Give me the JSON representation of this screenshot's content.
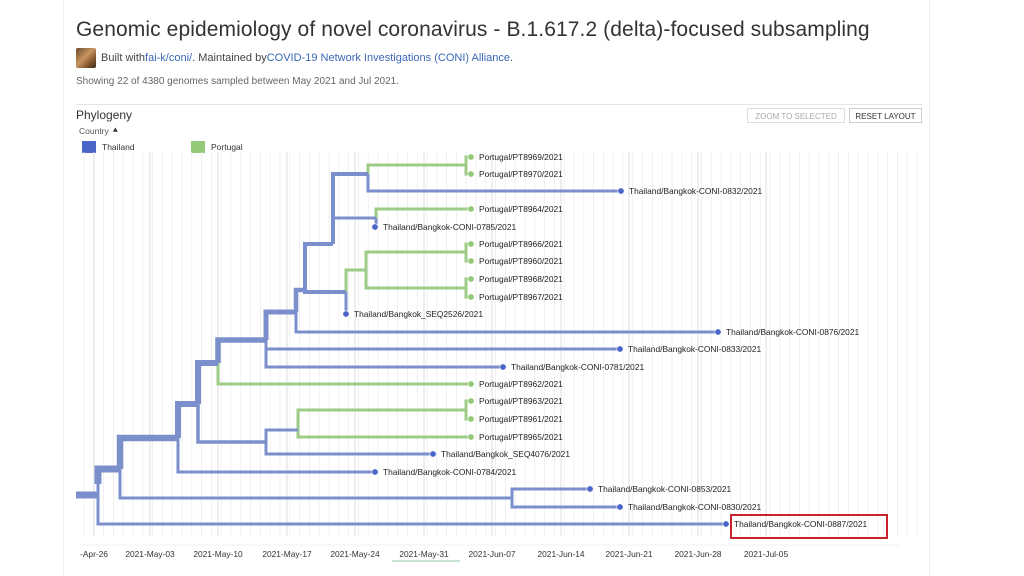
{
  "header": {
    "title": "Genomic epidemiology of novel coronavirus - B.1.617.2 (delta)-focused subsampling",
    "built_with": "Built with ",
    "built_link": "fai-k/coni/",
    "maintained_by": ". Maintained by ",
    "maintainer_link": "COVID-19 Network Investigations (CONI) Alliance",
    "period": ".",
    "summary": "Showing 22 of 4380 genomes sampled between May 2021 and Jul 2021."
  },
  "panel": {
    "title": "Phylogeny",
    "zoom_button": "ZOOM TO SELECTED",
    "reset_button": "RESET LAYOUT",
    "color_by": "Country",
    "legend": [
      {
        "label": "Thailand",
        "color": "#4a66c9"
      },
      {
        "label": "Portugal",
        "color": "#95c97a"
      }
    ]
  },
  "colors": {
    "thailand_branch": "#7b8fcc",
    "portugal_branch": "#9ccc86",
    "thailand_tip": "#4a66c9",
    "portugal_tip": "#95c97a",
    "highlight": "#c8232c"
  },
  "axis": {
    "ticks": [
      "-Apr-26",
      "2021-May-03",
      "2021-May-10",
      "2021-May-17",
      "2021-May-24",
      "2021-May-31",
      "2021-Jun-07",
      "2021-Jun-14",
      "2021-Jun-21",
      "2021-Jun-28",
      "2021-Jul-05"
    ]
  },
  "tree": {
    "tips": [
      {
        "label": "Portugal/PT8969/2021",
        "country": "Portugal"
      },
      {
        "label": "Portugal/PT8970/2021",
        "country": "Portugal"
      },
      {
        "label": "Thailand/Bangkok-CONI-0832/2021",
        "country": "Thailand"
      },
      {
        "label": "Portugal/PT8964/2021",
        "country": "Portugal"
      },
      {
        "label": "Thailand/Bangkok-CONI-0785/2021",
        "country": "Thailand"
      },
      {
        "label": "Portugal/PT8966/2021",
        "country": "Portugal"
      },
      {
        "label": "Portugal/PT8960/2021",
        "country": "Portugal"
      },
      {
        "label": "Portugal/PT8968/2021",
        "country": "Portugal"
      },
      {
        "label": "Portugal/PT8967/2021",
        "country": "Portugal"
      },
      {
        "label": "Thailand/Bangkok_SEQ2526/2021",
        "country": "Thailand"
      },
      {
        "label": "Thailand/Bangkok-CONI-0876/2021",
        "country": "Thailand"
      },
      {
        "label": "Thailand/Bangkok-CONI-0833/2021",
        "country": "Thailand"
      },
      {
        "label": "Thailand/Bangkok-CONI-0781/2021",
        "country": "Thailand"
      },
      {
        "label": "Portugal/PT8962/2021",
        "country": "Portugal"
      },
      {
        "label": "Portugal/PT8963/2021",
        "country": "Portugal"
      },
      {
        "label": "Portugal/PT8961/2021",
        "country": "Portugal"
      },
      {
        "label": "Portugal/PT8965/2021",
        "country": "Portugal"
      },
      {
        "label": "Thailand/Bangkok_SEQ4076/2021",
        "country": "Thailand"
      },
      {
        "label": "Thailand/Bangkok-CONI-0784/2021",
        "country": "Thailand"
      },
      {
        "label": "Thailand/Bangkok-CONI-0853/2021",
        "country": "Thailand"
      },
      {
        "label": "Thailand/Bangkok-CONI-0830/2021",
        "country": "Thailand"
      },
      {
        "label": "Thailand/Bangkok-CONI-0887/2021",
        "country": "Thailand",
        "highlighted": true
      }
    ]
  }
}
